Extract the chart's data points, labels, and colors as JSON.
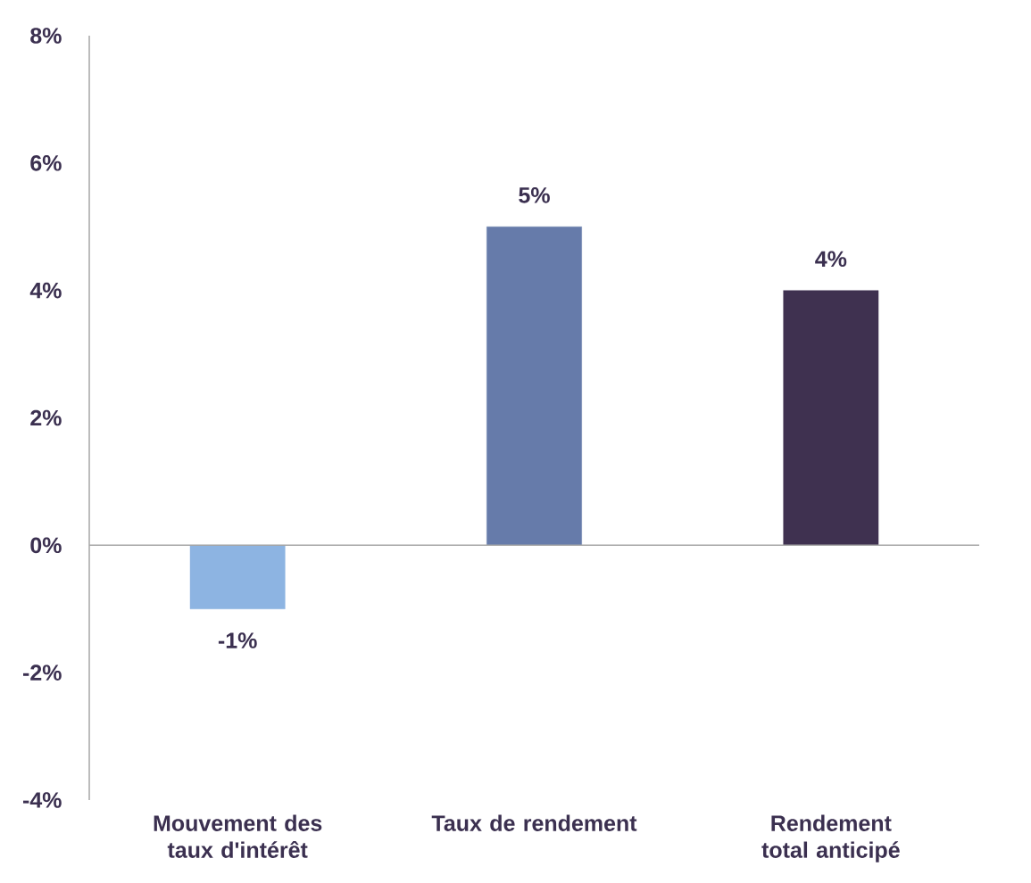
{
  "chart_data": {
    "type": "bar",
    "categories": [
      "Mouvement des taux d'intérêt",
      "Taux de rendement",
      "Rendement total anticipé"
    ],
    "values": [
      -1,
      5,
      4
    ],
    "colors": [
      "#8db4e2",
      "#667baa",
      "#3f3150"
    ],
    "value_labels": [
      "-1%",
      "5%",
      "4%"
    ],
    "ylim": [
      -4,
      8
    ],
    "yticks": [
      {
        "value": -4,
        "label": "-4%"
      },
      {
        "value": -2,
        "label": "-2%"
      },
      {
        "value": 0,
        "label": "0%"
      },
      {
        "value": 2,
        "label": "2%"
      },
      {
        "value": 4,
        "label": "4%"
      },
      {
        "value": 6,
        "label": "6%"
      },
      {
        "value": 8,
        "label": "8%"
      }
    ]
  }
}
